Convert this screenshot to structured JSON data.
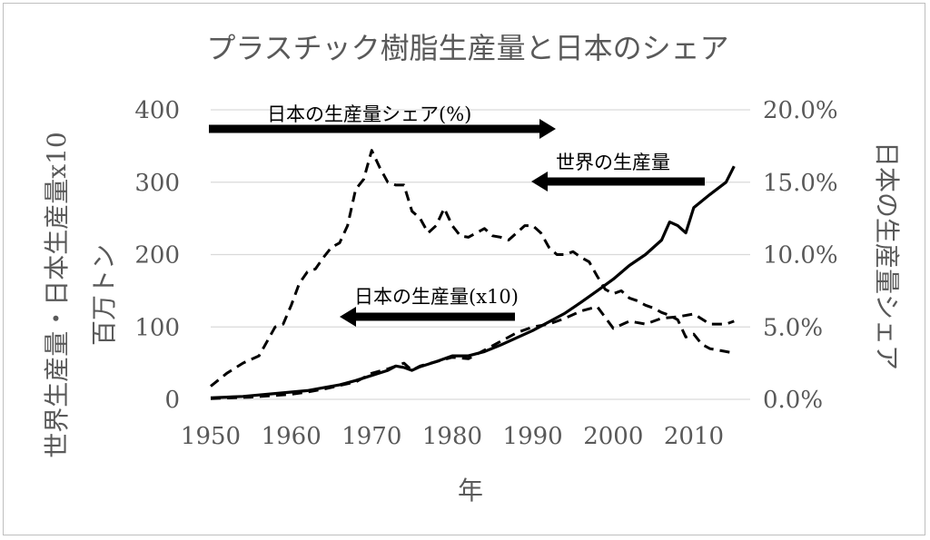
{
  "chart_data": {
    "type": "line",
    "title": "プラスチック樹脂生産量と日本のシェア",
    "xlabel": "年",
    "ylabel_left_line1": "世界生産量・日本生産量x10",
    "ylabel_left_line2": "百万トン",
    "ylabel_right": "日本の生産量シェア",
    "xlim": [
      1950,
      2017
    ],
    "ylim_left": [
      0,
      400
    ],
    "ylim_right": [
      0,
      20
    ],
    "x_ticks": [
      "1950",
      "1960",
      "1970",
      "1980",
      "1990",
      "2000",
      "2010"
    ],
    "y_left_ticks": [
      "0",
      "100",
      "200",
      "300",
      "400"
    ],
    "y_right_ticks": [
      "0.0%",
      "5.0%",
      "10.0%",
      "15.0%",
      "20.0%"
    ],
    "grid": "horizontal",
    "series": [
      {
        "name": "世界の生産量",
        "axis": "left",
        "style": "solid",
        "x": [
          1950,
          1952,
          1954,
          1956,
          1958,
          1960,
          1962,
          1964,
          1966,
          1968,
          1970,
          1972,
          1973,
          1974,
          1975,
          1976,
          1978,
          1980,
          1982,
          1984,
          1986,
          1988,
          1990,
          1992,
          1994,
          1996,
          1998,
          2000,
          2002,
          2004,
          2006,
          2007,
          2008,
          2009,
          2010,
          2012,
          2014,
          2015
        ],
        "y": [
          2,
          3,
          4,
          6,
          8,
          10,
          12,
          16,
          20,
          26,
          33,
          40,
          46,
          44,
          40,
          45,
          52,
          60,
          60,
          66,
          75,
          85,
          95,
          107,
          119,
          134,
          150,
          166,
          185,
          200,
          220,
          245,
          240,
          230,
          265,
          283,
          300,
          322
        ]
      },
      {
        "name": "日本の生産量(x10)",
        "axis": "left",
        "style": "dashed",
        "x": [
          1950,
          1955,
          1960,
          1962,
          1964,
          1966,
          1968,
          1970,
          1972,
          1974,
          1975,
          1976,
          1978,
          1980,
          1982,
          1984,
          1986,
          1988,
          1990,
          1992,
          1994,
          1996,
          1998,
          2000,
          2002,
          2004,
          2006,
          2008,
          2010,
          2012,
          2014,
          2015
        ],
        "y": [
          1,
          3,
          7,
          10,
          14,
          19,
          24,
          36,
          42,
          50,
          40,
          46,
          52,
          58,
          56,
          68,
          80,
          92,
          100,
          104,
          112,
          122,
          128,
          98,
          108,
          104,
          112,
          114,
          118,
          104,
          104,
          108
        ]
      },
      {
        "name": "日本の生産量シェア(%)",
        "axis": "right",
        "style": "dashed",
        "x": [
          1950,
          1952,
          1954,
          1956,
          1957,
          1958,
          1959,
          1960,
          1961,
          1962,
          1963,
          1964,
          1965,
          1966,
          1967,
          1968,
          1969,
          1970,
          1971,
          1972,
          1973,
          1974,
          1975,
          1976,
          1977,
          1978,
          1979,
          1980,
          1981,
          1982,
          1983,
          1984,
          1985,
          1986,
          1987,
          1988,
          1989,
          1990,
          1991,
          1992,
          1993,
          1994,
          1995,
          1996,
          1997,
          1998,
          1999,
          2000,
          2001,
          2002,
          2003,
          2004,
          2005,
          2006,
          2007,
          2008,
          2009,
          2010,
          2011,
          2012,
          2013,
          2014,
          2015
        ],
        "y": [
          0.9,
          1.8,
          2.5,
          3.0,
          4.0,
          5.0,
          5.2,
          6.5,
          8.0,
          8.8,
          9.0,
          9.8,
          10.5,
          10.8,
          12.0,
          14.5,
          15.2,
          17.2,
          16.0,
          15.0,
          14.8,
          14.8,
          13.0,
          12.5,
          11.5,
          12.0,
          13.2,
          12.0,
          11.3,
          11.2,
          11.5,
          11.8,
          11.3,
          11.2,
          11.0,
          11.5,
          12.0,
          12.0,
          11.5,
          10.5,
          10.0,
          10.0,
          10.2,
          9.8,
          9.5,
          8.5,
          7.6,
          7.3,
          7.5,
          7.0,
          6.8,
          6.5,
          6.3,
          6.0,
          5.8,
          5.5,
          4.3,
          4.5,
          3.8,
          3.5,
          3.4,
          3.3,
          3.2
        ]
      }
    ],
    "annotations": [
      {
        "text": "日本の生産量シェア(%)",
        "arrow": "right"
      },
      {
        "text": "世界の生産量",
        "arrow": "left"
      },
      {
        "text": "日本の生産量(x10)",
        "arrow": "left"
      }
    ]
  }
}
